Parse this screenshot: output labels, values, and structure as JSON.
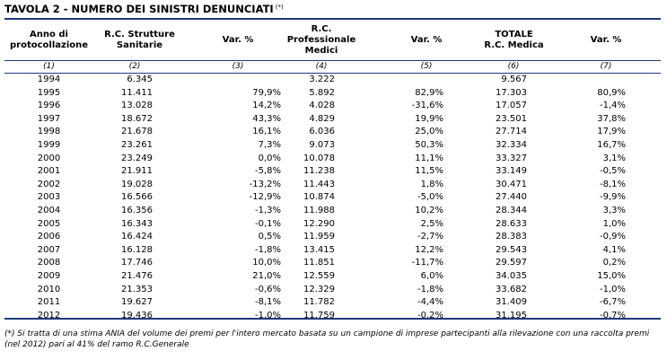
{
  "table": {
    "title": "TAVOLA 2 - NUMERO DEI SINISTRI DENUNCIATI",
    "title_mark": "(*)",
    "headers": [
      "Anno di\nprotocollazione",
      "R.C. Strutture\nSanitarie",
      "Var. %",
      "R.C.\nProfessionale\nMedici",
      "Var. %",
      "TOTALE\nR.C. Medica",
      "Var. %"
    ],
    "column_numbers": [
      "(1)",
      "(2)",
      "(3)",
      "(4)",
      "(5)",
      "(6)",
      "(7)"
    ],
    "rows": [
      [
        "1994",
        "6.345",
        "",
        "3.222",
        "",
        "9.567",
        ""
      ],
      [
        "1995",
        "11.411",
        "79,9%",
        "5.892",
        "82,9%",
        "17.303",
        "80,9%"
      ],
      [
        "1996",
        "13.028",
        "14,2%",
        "4.028",
        "-31,6%",
        "17.057",
        "-1,4%"
      ],
      [
        "1997",
        "18.672",
        "43,3%",
        "4.829",
        "19,9%",
        "23.501",
        "37,8%"
      ],
      [
        "1998",
        "21.678",
        "16,1%",
        "6.036",
        "25,0%",
        "27.714",
        "17,9%"
      ],
      [
        "1999",
        "23.261",
        "7,3%",
        "9.073",
        "50,3%",
        "32.334",
        "16,7%"
      ],
      [
        "2000",
        "23.249",
        "0,0%",
        "10.078",
        "11,1%",
        "33.327",
        "3,1%"
      ],
      [
        "2001",
        "21.911",
        "-5,8%",
        "11.238",
        "11,5%",
        "33.149",
        "-0,5%"
      ],
      [
        "2002",
        "19.028",
        "-13,2%",
        "11.443",
        "1,8%",
        "30.471",
        "-8,1%"
      ],
      [
        "2003",
        "16.566",
        "-12,9%",
        "10.874",
        "-5,0%",
        "27.440",
        "-9,9%"
      ],
      [
        "2004",
        "16.356",
        "-1,3%",
        "11.988",
        "10,2%",
        "28.344",
        "3,3%"
      ],
      [
        "2005",
        "16.343",
        "-0,1%",
        "12.290",
        "2,5%",
        "28.633",
        "1,0%"
      ],
      [
        "2006",
        "16.424",
        "0,5%",
        "11.959",
        "-2,7%",
        "28.383",
        "-0,9%"
      ],
      [
        "2007",
        "16.128",
        "-1,8%",
        "13.415",
        "12,2%",
        "29.543",
        "4,1%"
      ],
      [
        "2008",
        "17.746",
        "10,0%",
        "11.851",
        "-11,7%",
        "29.597",
        "0,2%"
      ],
      [
        "2009",
        "21.476",
        "21,0%",
        "12.559",
        "6,0%",
        "34.035",
        "15,0%"
      ],
      [
        "2010",
        "21.353",
        "-0,6%",
        "12.329",
        "-1,8%",
        "33.682",
        "-1,0%"
      ],
      [
        "2011",
        "19.627",
        "-8,1%",
        "11.782",
        "-4,4%",
        "31.409",
        "-6,7%"
      ],
      [
        "2012",
        "19.436",
        "-1,0%",
        "11.759",
        "-0,2%",
        "31.195",
        "-0,7%"
      ]
    ],
    "footnote": "(*) Si tratta di una stima ANIA del volume dei premi per l'intero mercato basata su un campione di imprese partecipanti alla rilevazione con una raccolta premi (nel 2012) pari al 41% del ramo R.C.Generale"
  },
  "colors": {
    "rule": "#1f3a78",
    "text": "#000000",
    "background": "#ffffff"
  }
}
